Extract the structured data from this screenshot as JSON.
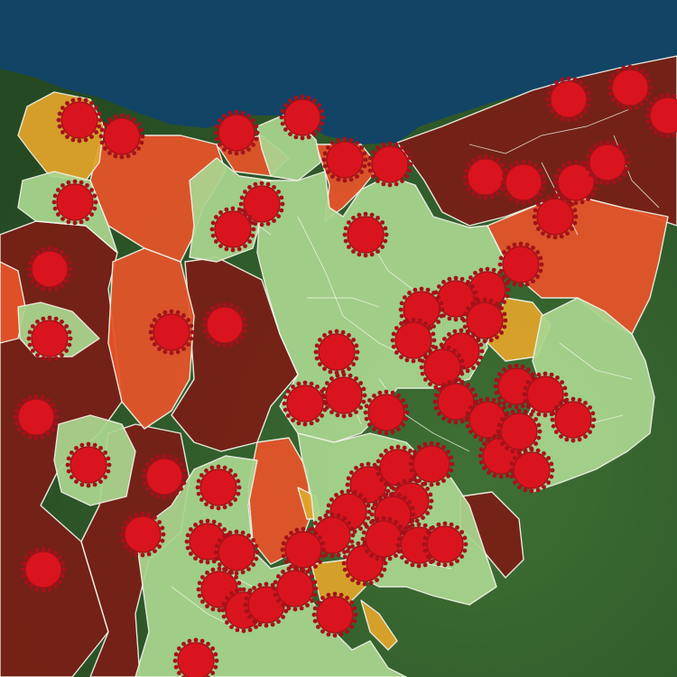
{
  "map": {
    "basemap": "satellite",
    "colors": {
      "sea": "#124466",
      "land": "#2f5a2a",
      "level_low": "#a9d68f",
      "level_medium": "#e2a52a",
      "level_high": "#e8542a",
      "level_very_high": "#7a1e16",
      "marker": "#d9141e",
      "marker_spike": "#a4121a"
    },
    "marker_icon": "virus-icon",
    "legend": []
  }
}
